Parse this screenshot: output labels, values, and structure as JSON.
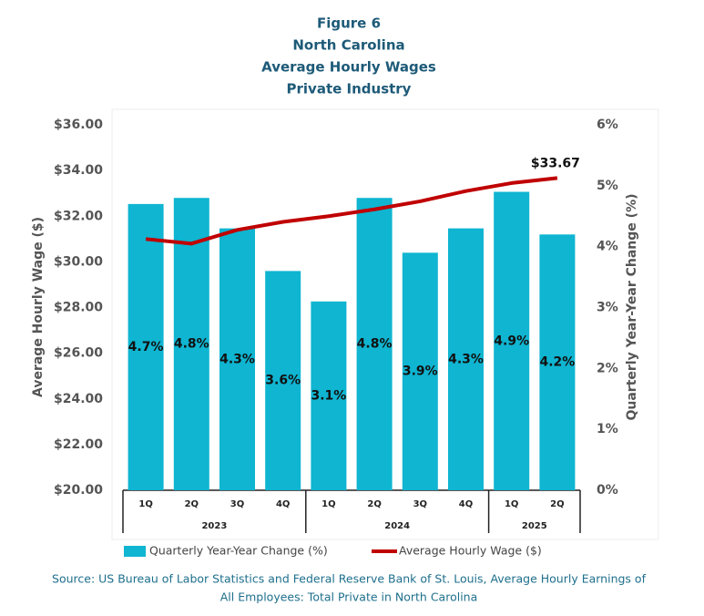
{
  "chart_data": {
    "type": "bar-line",
    "title": [
      "Figure 6",
      "North Carolina",
      "Average Hourly Wages",
      "Private Industry"
    ],
    "groups": [
      {
        "label": "2023",
        "quarters": [
          "1Q",
          "2Q",
          "3Q",
          "4Q"
        ]
      },
      {
        "label": "2024",
        "quarters": [
          "1Q",
          "2Q",
          "3Q",
          "4Q"
        ]
      },
      {
        "label": "2025",
        "quarters": [
          "1Q",
          "2Q"
        ]
      }
    ],
    "series": [
      {
        "name": "Quarterly Year-Year Change (%)",
        "type": "bar",
        "axis": "y2",
        "color": "#0fb5d1",
        "values": [
          4.7,
          4.8,
          4.3,
          3.6,
          3.1,
          4.8,
          3.9,
          4.3,
          4.9,
          4.2
        ],
        "value_labels": [
          "4.7%",
          "4.8%",
          "4.3%",
          "3.6%",
          "3.1%",
          "4.8%",
          "3.9%",
          "4.3%",
          "4.9%",
          "4.2%"
        ]
      },
      {
        "name": "Average Hourly Wage ($)",
        "type": "line",
        "axis": "y",
        "color": "#c00000",
        "values": [
          31.0,
          30.8,
          31.4,
          31.75,
          32.0,
          32.3,
          32.65,
          33.1,
          33.45,
          33.67
        ],
        "value_labels": [
          null,
          null,
          null,
          null,
          null,
          null,
          null,
          null,
          null,
          "$33.67"
        ]
      }
    ],
    "ylabel": "Average Hourly Wage ($)",
    "y2label": "Quarterly Year-Year Change (%)",
    "ylim": [
      20,
      36
    ],
    "yticks": [
      {
        "value": 20,
        "label": "$20.00"
      },
      {
        "value": 22,
        "label": "$22.00"
      },
      {
        "value": 24,
        "label": "$24.00"
      },
      {
        "value": 26,
        "label": "$26.00"
      },
      {
        "value": 28,
        "label": "$28.00"
      },
      {
        "value": 30,
        "label": "$30.00"
      },
      {
        "value": 32,
        "label": "$32.00"
      },
      {
        "value": 34,
        "label": "$34.00"
      },
      {
        "value": 36,
        "label": "$36.00"
      }
    ],
    "y2lim": [
      0,
      6
    ],
    "y2ticks": [
      {
        "value": 0,
        "label": "0%"
      },
      {
        "value": 1,
        "label": "1%"
      },
      {
        "value": 2,
        "label": "2%"
      },
      {
        "value": 3,
        "label": "3%"
      },
      {
        "value": 4,
        "label": "4%"
      },
      {
        "value": 5,
        "label": "5%"
      },
      {
        "value": 6,
        "label": "6%"
      }
    ],
    "legend": "bottom",
    "source": [
      "Source: US Bureau of Labor Statistics and Federal Reserve Bank of St. Louis, Average Hourly Earnings of",
      "All Employees: Total Private in North Carolina"
    ]
  }
}
